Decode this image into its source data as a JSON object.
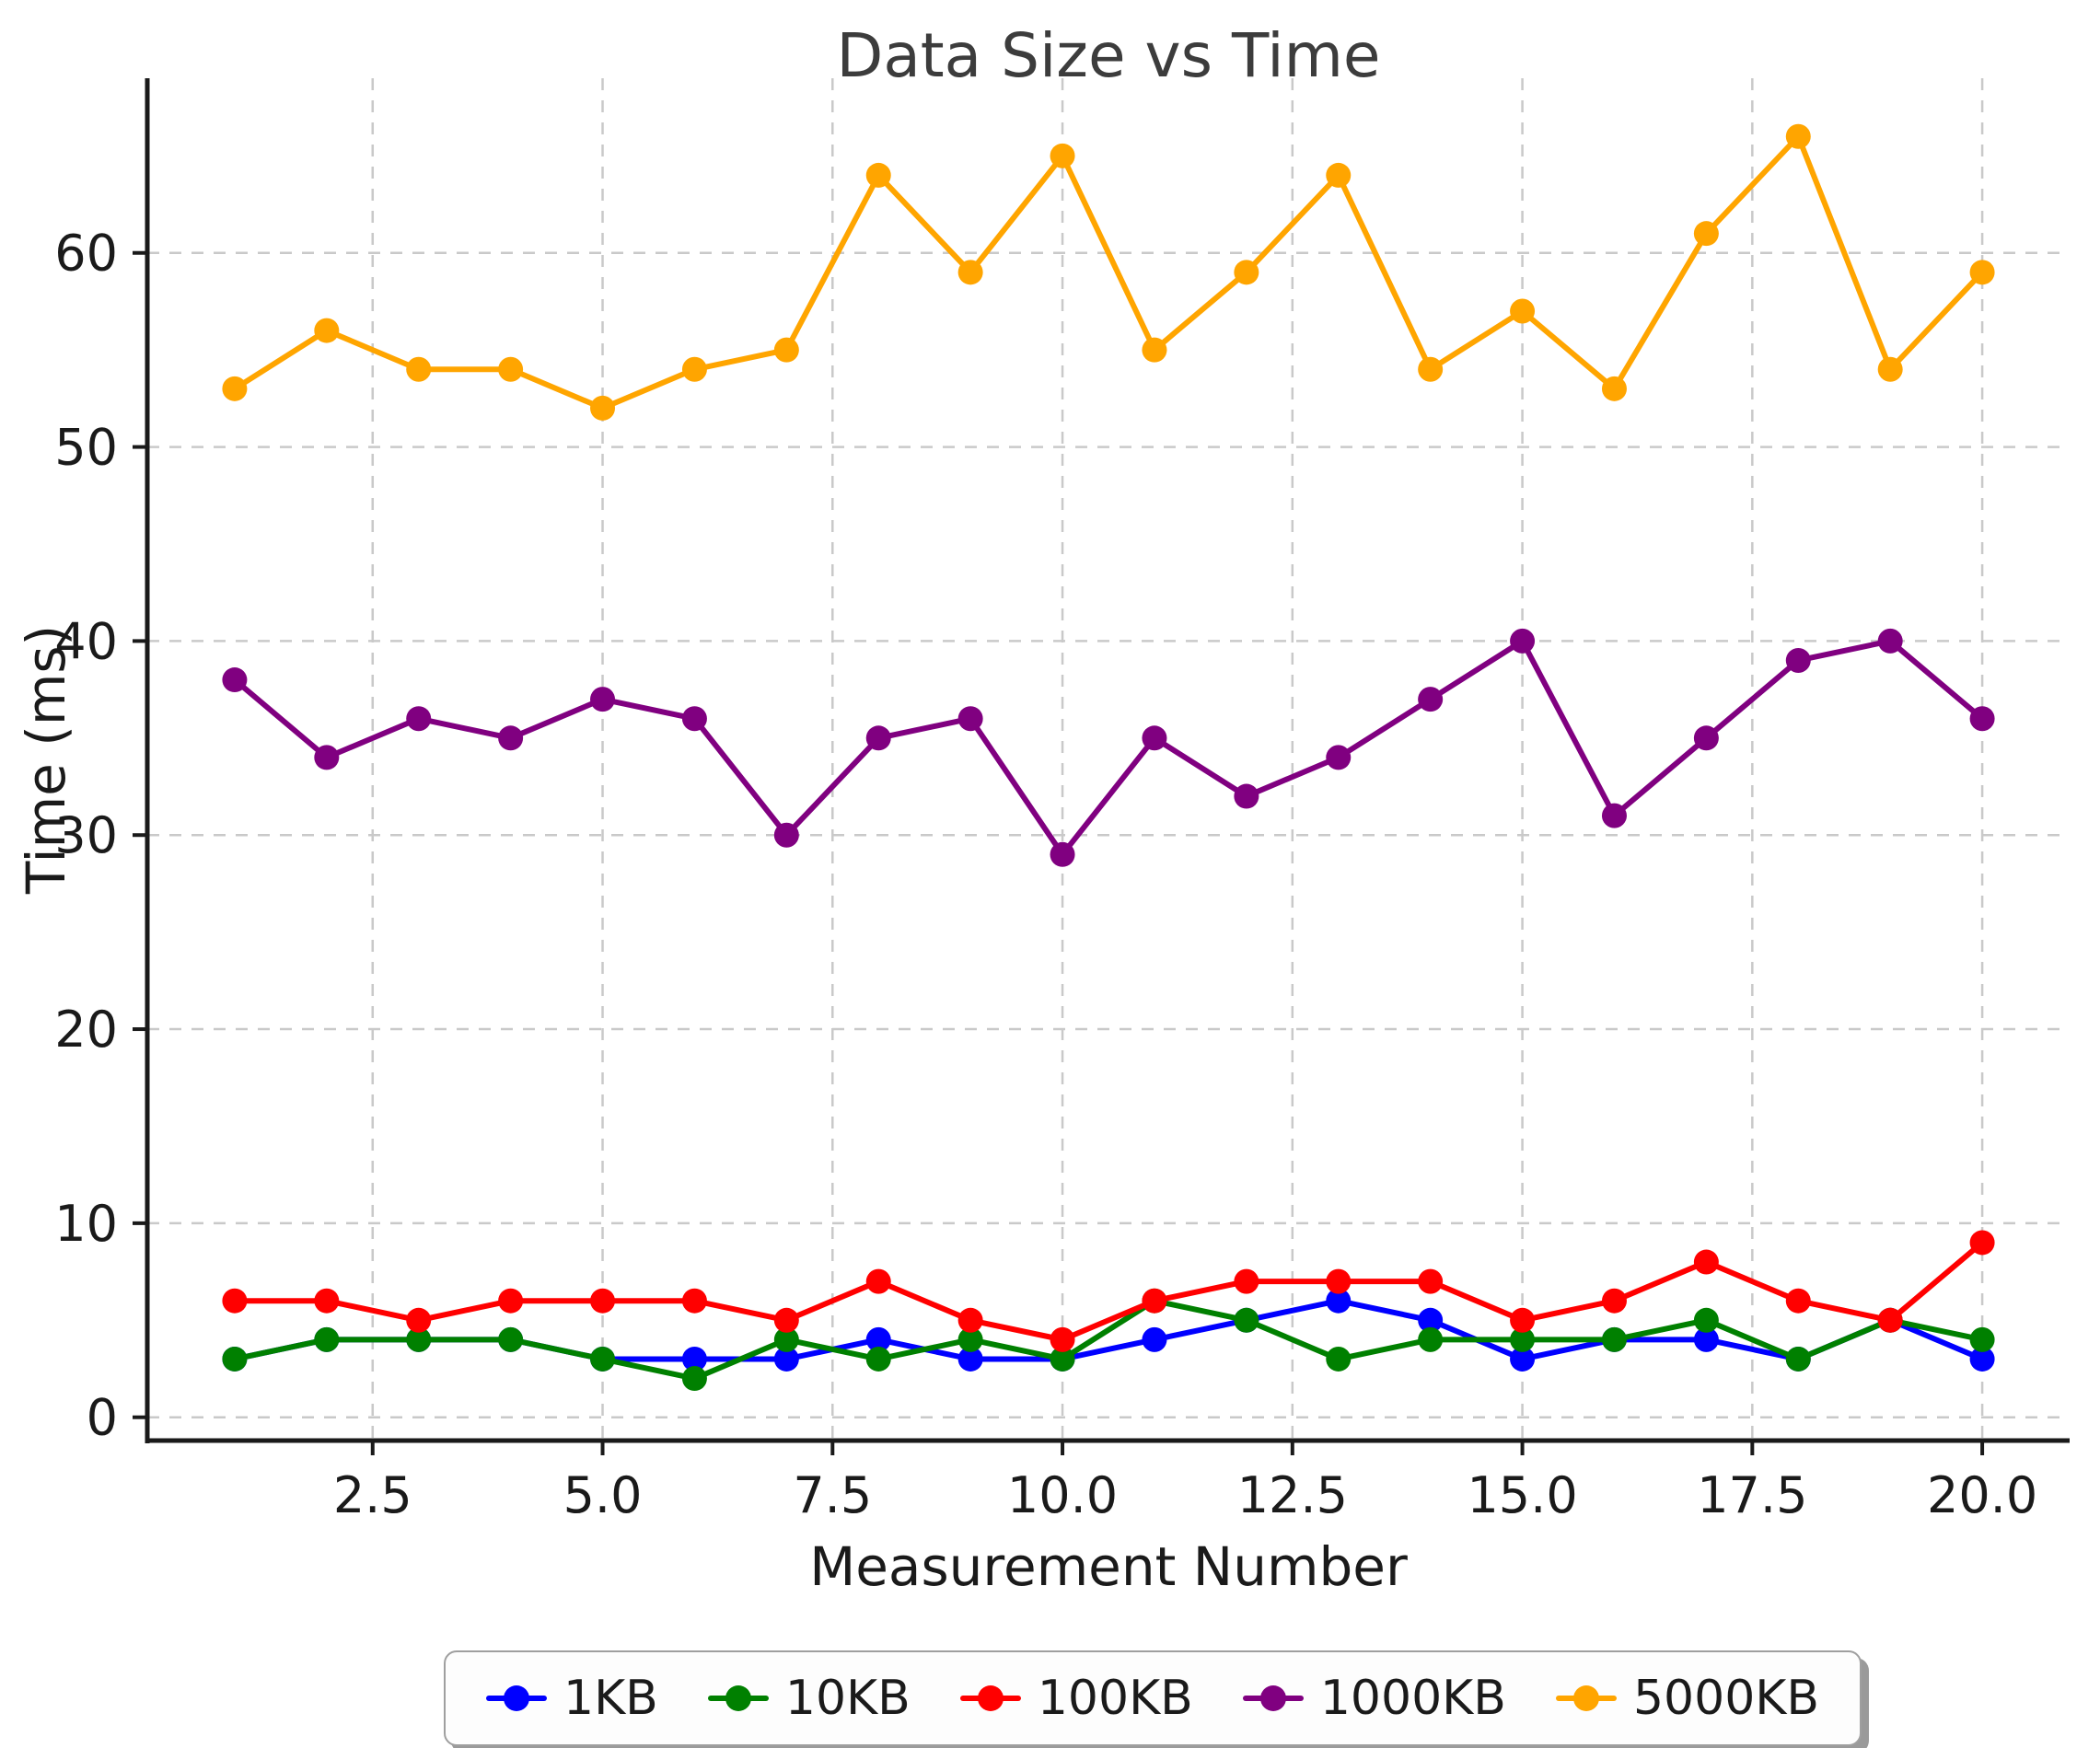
{
  "chart_data": {
    "type": "line",
    "title": "Data Size vs Time",
    "xlabel": "Measurement Number",
    "ylabel": "Time (ms)",
    "x": [
      1,
      2,
      3,
      4,
      5,
      6,
      7,
      8,
      9,
      10,
      11,
      12,
      13,
      14,
      15,
      16,
      17,
      18,
      19,
      20
    ],
    "xticks": [
      2.5,
      5.0,
      7.5,
      10.0,
      12.5,
      15.0,
      17.5,
      20.0
    ],
    "xtick_labels": [
      "2.5",
      "5.0",
      "7.5",
      "10.0",
      "12.5",
      "15.0",
      "17.5",
      "20.0"
    ],
    "yticks": [
      0,
      10,
      20,
      30,
      40,
      50,
      60
    ],
    "ytick_labels": [
      "0",
      "10",
      "20",
      "30",
      "40",
      "50",
      "60"
    ],
    "xlim": [
      0.05,
      20.95
    ],
    "ylim": [
      -1.2,
      69.0
    ],
    "grid": true,
    "grid_color": "#c9c9c9",
    "spine_color": "#1a1a1a",
    "legend_position": "bottom-center",
    "series": [
      {
        "name": "1KB",
        "color": "#0000ff",
        "values": [
          3,
          4,
          4,
          4,
          3,
          3,
          3,
          4,
          3,
          3,
          4,
          5,
          6,
          5,
          3,
          4,
          4,
          3,
          5,
          3
        ]
      },
      {
        "name": "10KB",
        "color": "#008000",
        "values": [
          3,
          4,
          4,
          4,
          3,
          2,
          4,
          3,
          4,
          3,
          6,
          5,
          3,
          4,
          4,
          4,
          5,
          3,
          5,
          4
        ]
      },
      {
        "name": "100KB",
        "color": "#ff0000",
        "values": [
          6,
          6,
          5,
          6,
          6,
          6,
          5,
          7,
          5,
          4,
          6,
          7,
          7,
          7,
          5,
          6,
          8,
          6,
          5,
          9
        ]
      },
      {
        "name": "1000KB",
        "color": "#800080",
        "values": [
          38,
          34,
          36,
          35,
          37,
          36,
          30,
          35,
          36,
          29,
          35,
          32,
          34,
          37,
          40,
          31,
          35,
          39,
          40,
          36
        ]
      },
      {
        "name": "5000KB",
        "color": "#ffa500",
        "values": [
          53,
          56,
          54,
          54,
          52,
          54,
          55,
          64,
          59,
          65,
          55,
          59,
          64,
          54,
          57,
          53,
          61,
          66,
          54,
          59
        ]
      }
    ]
  }
}
